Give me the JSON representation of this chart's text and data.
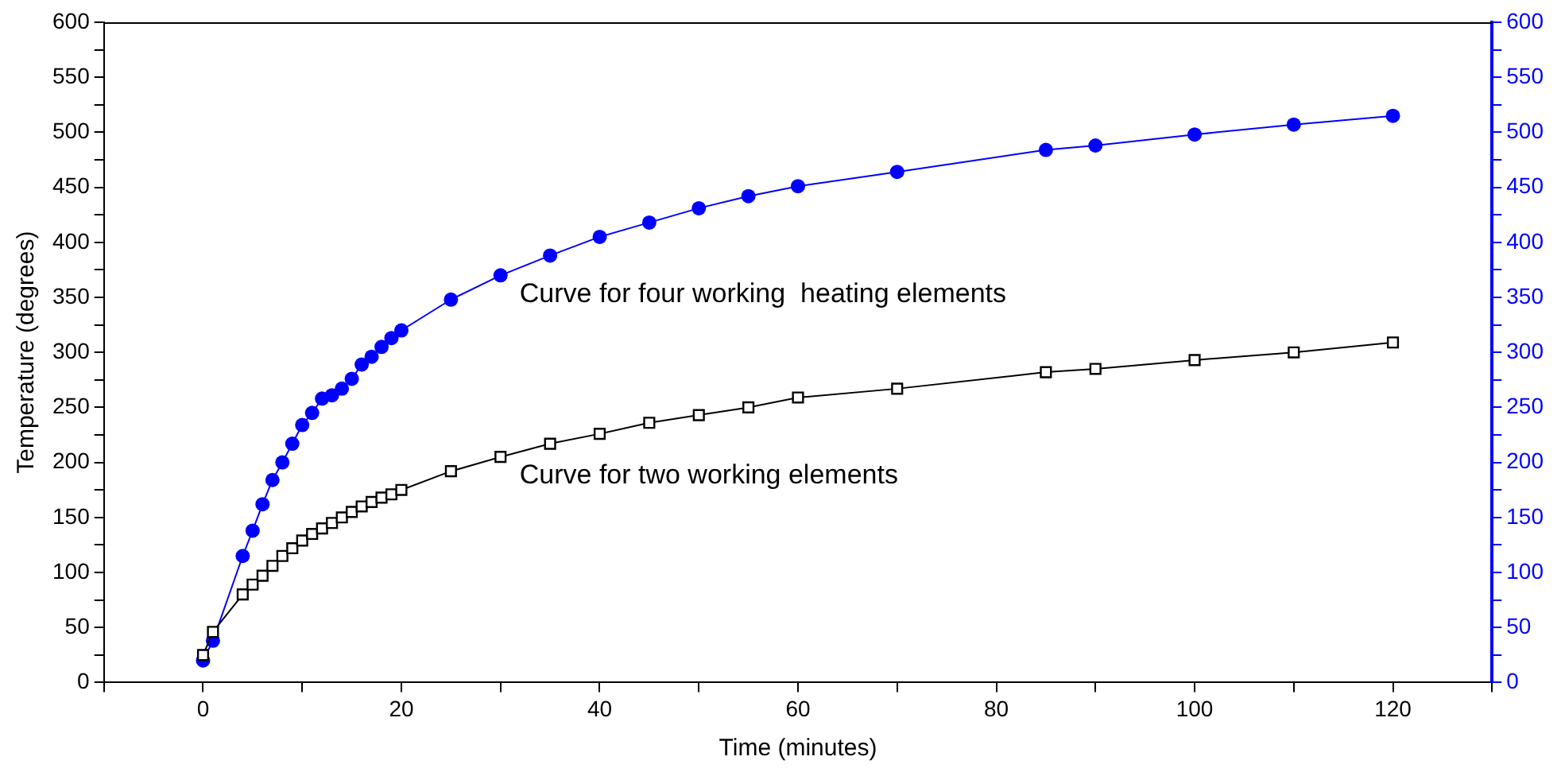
{
  "chart_data": {
    "type": "line",
    "xlabel": "Time (minutes)",
    "ylabel": "Temperature (degrees)",
    "xlim": [
      -10,
      130
    ],
    "xticks": [
      {
        "value": -10,
        "label": null
      },
      0,
      {
        "value": 10,
        "label": null
      },
      20,
      {
        "value": 30,
        "label": null
      },
      40,
      {
        "value": 50,
        "label": null
      },
      60,
      {
        "value": 70,
        "label": null
      },
      80,
      {
        "value": 90,
        "label": null
      },
      100,
      {
        "value": 110,
        "label": null
      },
      120,
      {
        "value": 130,
        "label": null
      }
    ],
    "ylim": [
      0,
      600
    ],
    "yticks": [
      0,
      {
        "value": 25,
        "label": null
      },
      50,
      {
        "value": 75,
        "label": null
      },
      100,
      {
        "value": 125,
        "label": null
      },
      150,
      {
        "value": 175,
        "label": null
      },
      200,
      {
        "value": 225,
        "label": null
      },
      250,
      {
        "value": 275,
        "label": null
      },
      300,
      {
        "value": 325,
        "label": null
      },
      350,
      {
        "value": 375,
        "label": null
      },
      400,
      {
        "value": 425,
        "label": null
      },
      450,
      {
        "value": 475,
        "label": null
      },
      500,
      {
        "value": 525,
        "label": null
      },
      550,
      {
        "value": 575,
        "label": null
      },
      600
    ],
    "y2lim": [
      0,
      600
    ],
    "y2ticks": [
      0,
      {
        "value": 25,
        "label": null
      },
      50,
      {
        "value": 75,
        "label": null
      },
      100,
      {
        "value": 125,
        "label": null
      },
      150,
      {
        "value": 175,
        "label": null
      },
      200,
      {
        "value": 225,
        "label": null
      },
      250,
      {
        "value": 275,
        "label": null
      },
      300,
      {
        "value": 325,
        "label": null
      },
      350,
      {
        "value": 375,
        "label": null
      },
      400,
      {
        "value": 425,
        "label": null
      },
      450,
      {
        "value": 475,
        "label": null
      },
      500,
      {
        "value": 525,
        "label": null
      },
      550,
      {
        "value": 575,
        "label": null
      },
      600
    ],
    "grid": false,
    "legend": false,
    "line_style": "solid",
    "series": [
      {
        "name": "Curve for four working  heating elements",
        "color": "#0000ff",
        "marker": "circle",
        "x": [
          0,
          1,
          4,
          5,
          6,
          7,
          8,
          9,
          10,
          11,
          12,
          13,
          14,
          15,
          16,
          17,
          18,
          19,
          20,
          25,
          30,
          35,
          40,
          45,
          50,
          55,
          60,
          70,
          85,
          90,
          100,
          110,
          120
        ],
        "values": [
          20,
          38,
          115,
          138,
          162,
          184,
          200,
          217,
          234,
          245,
          258,
          261,
          267,
          276,
          289,
          296,
          305,
          313,
          320,
          348,
          370,
          388,
          405,
          418,
          431,
          442,
          451,
          464,
          484,
          488,
          498,
          507,
          515
        ]
      },
      {
        "name": "Curve for two working elements",
        "color": "#000000",
        "marker": "square",
        "x": [
          0,
          1,
          4,
          5,
          6,
          7,
          8,
          9,
          10,
          11,
          12,
          13,
          14,
          15,
          16,
          17,
          18,
          19,
          20,
          25,
          30,
          35,
          40,
          45,
          50,
          55,
          60,
          70,
          85,
          90,
          100,
          110,
          120
        ],
        "values": [
          25,
          46,
          80,
          89,
          97,
          106,
          115,
          122,
          129,
          135,
          140,
          145,
          150,
          155,
          160,
          164,
          168,
          171,
          175,
          192,
          205,
          217,
          226,
          236,
          243,
          250,
          259,
          267,
          282,
          285,
          293,
          300,
          309
        ]
      }
    ]
  }
}
